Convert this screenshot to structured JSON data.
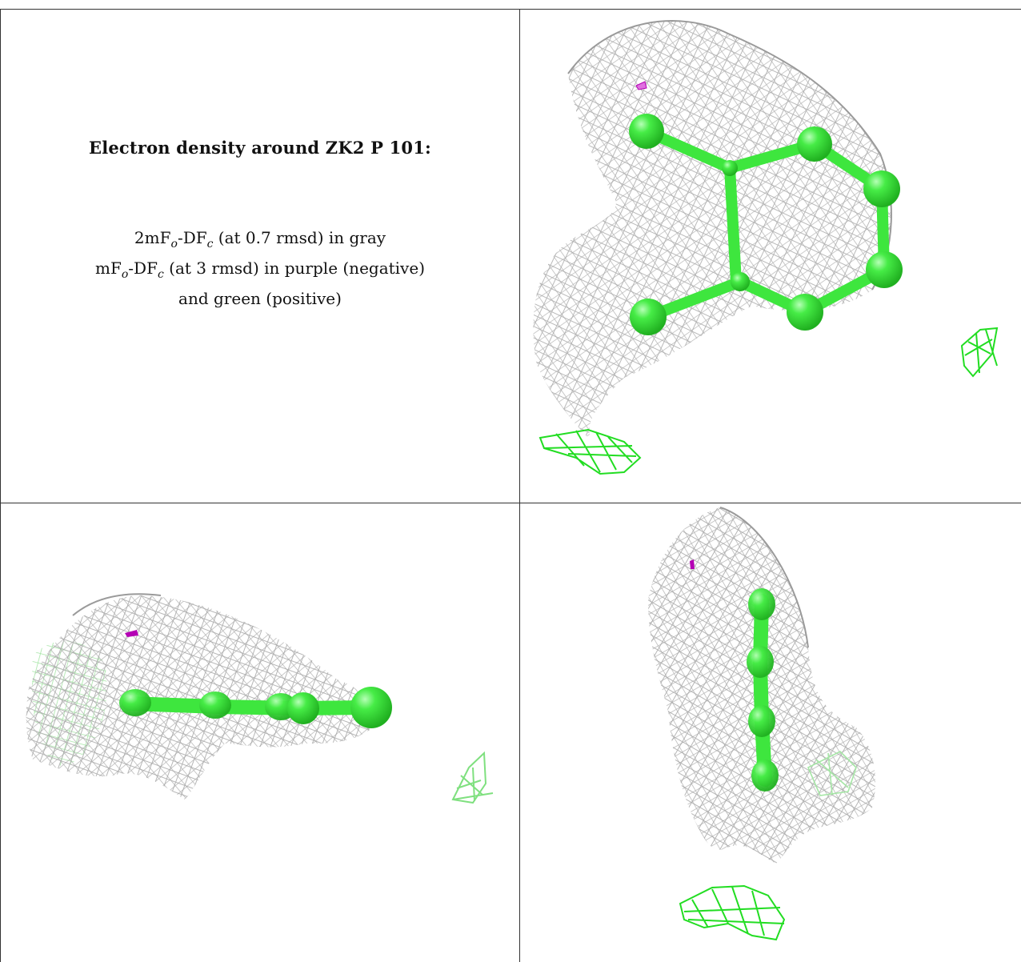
{
  "caption": {
    "title": "Electron density around ZK2 P 101:",
    "line1_a": "2mF",
    "line1_sub1": "o",
    "line1_b": "-DF",
    "line1_sub2": "c",
    "line1_c": " (at 0.7 rmsd) in gray",
    "line2_a": "mF",
    "line2_sub1": "o",
    "line2_b": "-DF",
    "line2_sub2": "c",
    "line2_c": " (at 3 rmsd) in purple (negative)",
    "line3": "and green (positive)"
  },
  "colors": {
    "mesh_gray": "#b4b4b4",
    "mesh_gray_dark": "#8c8c8c",
    "ligand_green": "#3ee63e",
    "positive_green": "#22dd22",
    "positive_green_faint": "#7fe07f",
    "negative_purple": "#b400b4",
    "border": "#333333"
  },
  "panels": [
    {
      "view": "top-right",
      "ligand_atoms": 8
    },
    {
      "view": "bottom-left",
      "ligand_atoms": 5
    },
    {
      "view": "bottom-right",
      "ligand_atoms": 4
    }
  ]
}
